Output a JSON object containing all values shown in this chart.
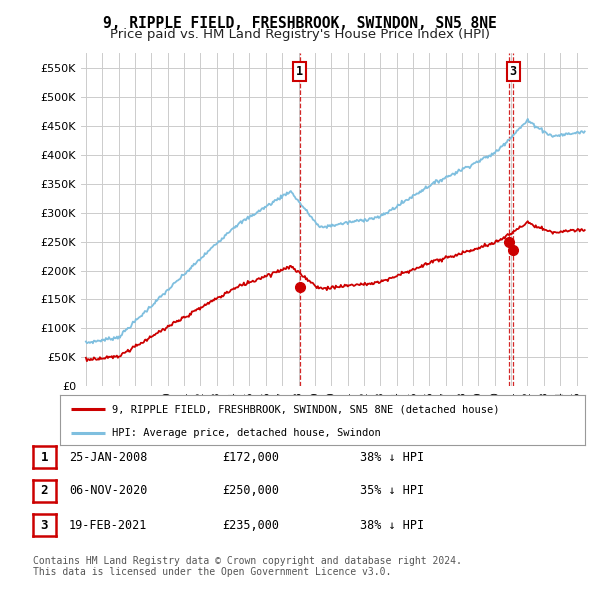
{
  "title": "9, RIPPLE FIELD, FRESHBROOK, SWINDON, SN5 8NE",
  "subtitle": "Price paid vs. HM Land Registry's House Price Index (HPI)",
  "ylim": [
    0,
    575000
  ],
  "yticks": [
    0,
    50000,
    100000,
    150000,
    200000,
    250000,
    300000,
    350000,
    400000,
    450000,
    500000,
    550000
  ],
  "ytick_labels": [
    "£0",
    "£50K",
    "£100K",
    "£150K",
    "£200K",
    "£250K",
    "£300K",
    "£350K",
    "£400K",
    "£450K",
    "£500K",
    "£550K"
  ],
  "background_color": "#ffffff",
  "plot_bg_color": "#ffffff",
  "grid_color": "#cccccc",
  "hpi_color": "#7fbfdf",
  "price_color": "#cc0000",
  "vline_color": "#cc0000",
  "sale_points": [
    {
      "date_num": 2008.07,
      "price": 172000,
      "label": "1"
    },
    {
      "date_num": 2020.85,
      "price": 250000,
      "label": "2"
    },
    {
      "date_num": 2021.13,
      "price": 235000,
      "label": "3"
    }
  ],
  "label_show_in_chart": [
    "1",
    "3"
  ],
  "legend_entries": [
    {
      "color": "#cc0000",
      "label": "9, RIPPLE FIELD, FRESHBROOK, SWINDON, SN5 8NE (detached house)"
    },
    {
      "color": "#7fbfdf",
      "label": "HPI: Average price, detached house, Swindon"
    }
  ],
  "table_rows": [
    {
      "num": "1",
      "date": "25-JAN-2008",
      "price": "£172,000",
      "hpi": "38% ↓ HPI"
    },
    {
      "num": "2",
      "date": "06-NOV-2020",
      "price": "£250,000",
      "hpi": "35% ↓ HPI"
    },
    {
      "num": "3",
      "date": "19-FEB-2021",
      "price": "£235,000",
      "hpi": "38% ↓ HPI"
    }
  ],
  "footer": "Contains HM Land Registry data © Crown copyright and database right 2024.\nThis data is licensed under the Open Government Licence v3.0.",
  "title_fontsize": 10.5,
  "subtitle_fontsize": 9.5
}
